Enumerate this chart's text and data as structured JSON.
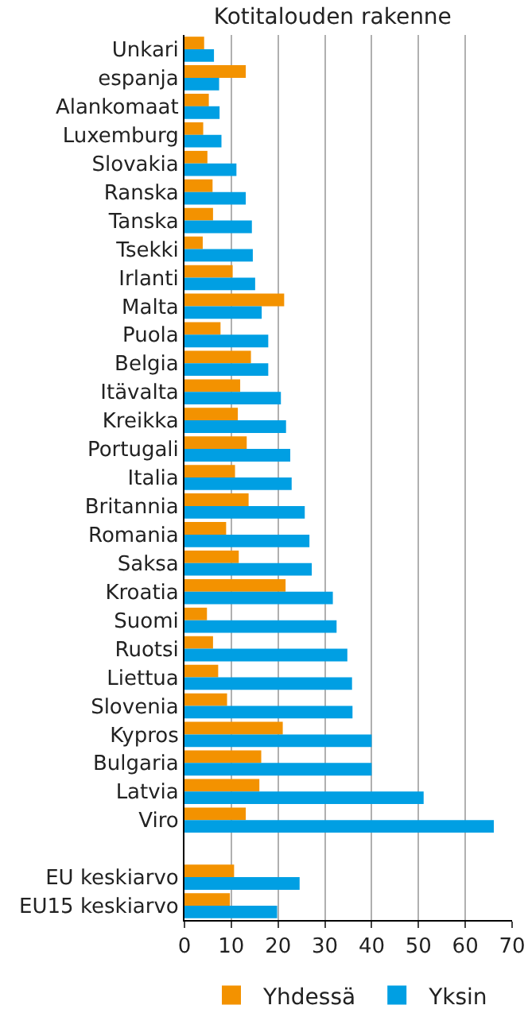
{
  "chart_data": {
    "type": "bar",
    "orientation": "horizontal",
    "title": "Kotitalouden rakenne",
    "categories": [
      "Unkari",
      "espanja",
      "Alankomaat",
      "Luxemburg",
      "Slovakia",
      "Ranska",
      "Tanska",
      "Tsekki",
      "Irlanti",
      "Malta",
      "Puola",
      "Belgia",
      "Itävalta",
      "Kreikka",
      "Portugali",
      "Italia",
      "Britannia",
      "Romania",
      "Saksa",
      "Kroatia",
      "Suomi",
      "Ruotsi",
      "Liettua",
      "Slovenia",
      "Kypros",
      "Bulgaria",
      "Latvia",
      "Viro",
      null,
      "EU keskiarvo",
      "EU15 keskiarvo"
    ],
    "series": [
      {
        "name": "Yhdessä",
        "color": "#f39200",
        "values": [
          4.2,
          13.1,
          5.2,
          4.0,
          4.9,
          6.0,
          6.1,
          3.9,
          10.3,
          21.3,
          7.7,
          14.2,
          11.9,
          11.4,
          13.3,
          10.8,
          13.7,
          8.9,
          11.6,
          21.6,
          4.8,
          6.1,
          7.2,
          9.1,
          21.0,
          16.4,
          16.0,
          13.1,
          null,
          10.6,
          9.7
        ]
      },
      {
        "name": "Yksin",
        "color": "#009fe3",
        "values": [
          6.3,
          7.4,
          7.5,
          7.9,
          11.1,
          13.1,
          14.4,
          14.6,
          15.1,
          16.5,
          17.9,
          17.9,
          20.6,
          21.7,
          22.6,
          22.9,
          25.7,
          26.7,
          27.2,
          31.7,
          32.5,
          34.8,
          35.8,
          35.9,
          40.0,
          40.0,
          51.1,
          66.1,
          null,
          24.6,
          19.8
        ]
      }
    ],
    "xlim": [
      0,
      70
    ],
    "xticks": [
      0,
      10,
      20,
      30,
      40,
      50,
      60,
      70
    ],
    "grid": "x",
    "legend": "bottom"
  }
}
